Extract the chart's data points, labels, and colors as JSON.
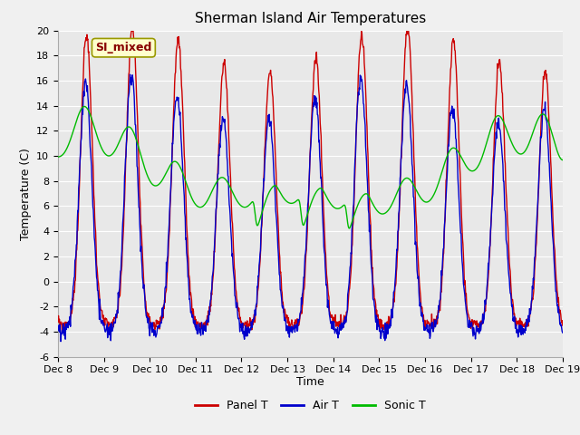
{
  "title": "Sherman Island Air Temperatures",
  "xlabel": "Time",
  "ylabel": "Temperature (C)",
  "ylim": [
    -6,
    20
  ],
  "yticks": [
    -6,
    -4,
    -2,
    0,
    2,
    4,
    6,
    8,
    10,
    12,
    14,
    16,
    18,
    20
  ],
  "xtick_labels": [
    "Dec 8",
    "Dec 9",
    "Dec 10",
    "Dec 11",
    "Dec 12",
    "Dec 13",
    "Dec 14",
    "Dec 15",
    "Dec 16",
    "Dec 17",
    "Dec 18",
    "Dec 19"
  ],
  "label_text": "SI_mixed",
  "panel_color": "#cc0000",
  "air_color": "#0000cc",
  "sonic_color": "#00bb00",
  "fig_bg": "#f0f0f0",
  "plot_bg": "#e8e8e8",
  "grid_color": "#ffffff",
  "legend_labels": [
    "Panel T",
    "Air T",
    "Sonic T"
  ],
  "title_fontsize": 11,
  "tick_fontsize": 8,
  "label_fontsize": 9,
  "legend_fontsize": 9
}
